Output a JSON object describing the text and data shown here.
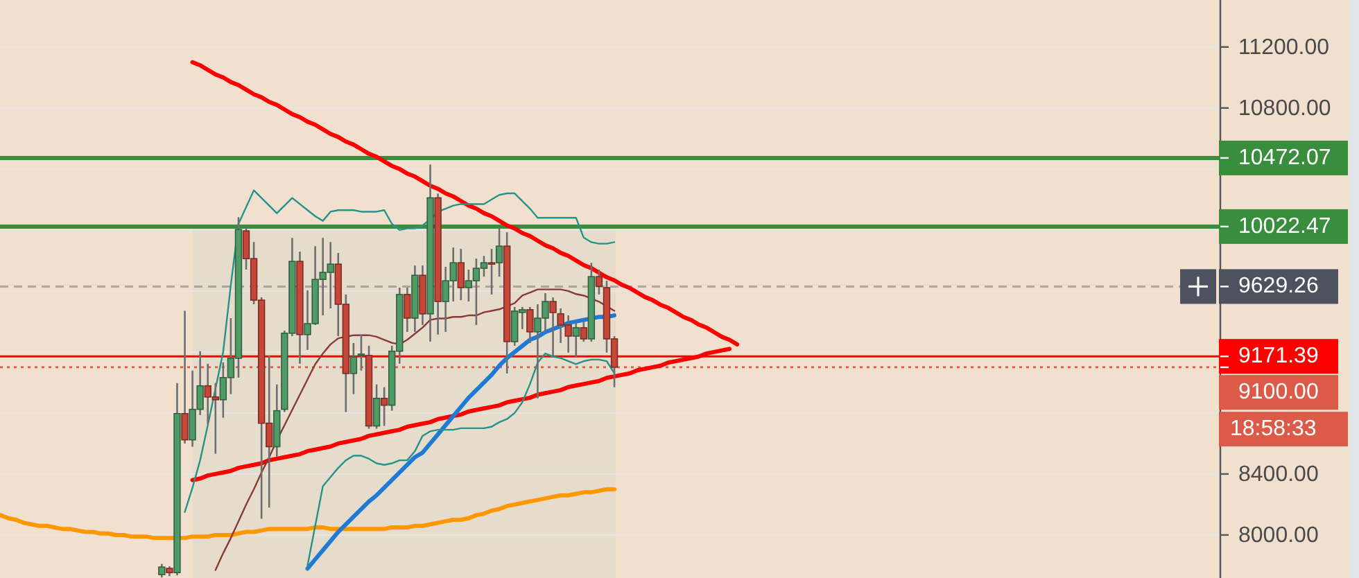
{
  "chart_data": {
    "type": "candlestick",
    "categories": [
      null,
      null,
      null,
      null,
      null,
      null,
      null,
      null,
      null,
      null,
      null,
      null,
      null,
      null,
      null,
      null,
      null,
      null,
      null,
      null,
      null,
      null,
      null,
      null,
      null,
      null,
      null,
      null,
      null,
      null,
      null,
      null,
      null,
      null,
      null,
      null,
      null,
      null,
      null,
      null,
      null,
      null,
      null,
      null,
      null,
      null,
      null,
      null,
      null,
      null,
      null,
      null,
      null,
      null,
      null,
      null,
      null,
      null,
      null,
      null,
      null,
      null,
      null,
      null,
      null,
      null,
      null,
      null,
      null,
      null,
      null,
      null,
      null,
      null,
      null,
      null,
      null,
      null,
      null,
      null,
      null,
      null,
      null,
      null,
      null,
      null,
      null,
      null,
      null,
      null,
      null,
      null,
      null,
      null,
      null,
      null,
      null
    ],
    "ohlc": [
      null,
      null,
      null,
      null,
      null,
      null,
      null,
      null,
      null,
      null,
      null,
      null,
      null,
      null,
      null,
      null,
      null,
      null,
      null,
      null,
      null,
      [
        7740,
        7810,
        7722,
        7790
      ],
      [
        7781,
        7795,
        7730,
        7753
      ],
      [
        7753,
        8996,
        7735,
        8796
      ],
      [
        8796,
        9470,
        8600,
        8624
      ],
      [
        8624,
        9078,
        8579,
        8824
      ],
      [
        8824,
        9205,
        8787,
        8978
      ],
      [
        8978,
        9123,
        8724,
        8905
      ],
      [
        8905,
        8996,
        8533,
        8887
      ],
      [
        8887,
        9132,
        8769,
        9032
      ],
      [
        9032,
        9422,
        8924,
        9159
      ],
      [
        9159,
        10084,
        9032,
        10003
      ],
      [
        9994,
        10030,
        9740,
        9812
      ],
      [
        9812,
        9921,
        9513,
        9540
      ],
      [
        9540,
        9558,
        8107,
        8733
      ],
      [
        8733,
        9177,
        8180,
        8579
      ],
      [
        8579,
        8987,
        8515,
        8815
      ],
      [
        8824,
        9340,
        8806,
        9323
      ],
      [
        9323,
        9948,
        9304,
        9794
      ],
      [
        9794,
        9858,
        9123,
        9314
      ],
      [
        9314,
        9604,
        9214,
        9386
      ],
      [
        9386,
        9894,
        9377,
        9676
      ],
      [
        9676,
        9948,
        9440,
        9722
      ],
      [
        9722,
        9921,
        9486,
        9776
      ],
      [
        9776,
        9849,
        9304,
        9513
      ],
      [
        9513,
        9577,
        8806,
        9059
      ],
      [
        9059,
        9259,
        8924,
        9168
      ],
      [
        9177,
        9314,
        9078,
        9186
      ],
      [
        9177,
        9241,
        8697,
        8715
      ],
      [
        8715,
        8987,
        8697,
        8896
      ],
      [
        8896,
        8969,
        8715,
        8851
      ],
      [
        8851,
        9241,
        8815,
        9205
      ],
      [
        9205,
        9622,
        9123,
        9577
      ],
      [
        9577,
        9622,
        9332,
        9422
      ],
      [
        9422,
        9767,
        9332,
        9703
      ],
      [
        9703,
        9767,
        9377,
        9450
      ],
      [
        9450,
        10429,
        9268,
        10211
      ],
      [
        10211,
        10239,
        9314,
        9531
      ],
      [
        9531,
        9758,
        9332,
        9667
      ],
      [
        9667,
        9885,
        9531,
        9785
      ],
      [
        9785,
        9876,
        9540,
        9622
      ],
      [
        9622,
        9740,
        9531,
        9667
      ],
      [
        9667,
        9812,
        9377,
        9749
      ],
      [
        9749,
        9830,
        9694,
        9785
      ],
      [
        9785,
        9876,
        9577,
        9780
      ],
      [
        9785,
        10012,
        9694,
        9894
      ],
      [
        9894,
        9985,
        9059,
        9268
      ],
      [
        9268,
        9495,
        9241,
        9468
      ],
      [
        9459,
        9495,
        9350,
        9477
      ],
      [
        9477,
        9495,
        9259,
        9332
      ],
      [
        9332,
        9513,
        8896,
        9422
      ],
      [
        9422,
        9586,
        9332,
        9531
      ],
      [
        9531,
        9558,
        9177,
        9459
      ],
      [
        9450,
        9486,
        9259,
        9377
      ],
      [
        9377,
        9440,
        9196,
        9304
      ],
      [
        9304,
        9395,
        9168,
        9359
      ],
      [
        9359,
        9404,
        9268,
        9286
      ],
      [
        9286,
        9785,
        9268,
        9694
      ],
      [
        9694,
        9740,
        9577,
        9631
      ],
      [
        9622,
        9667,
        9196,
        9286
      ],
      [
        9286,
        9304,
        8969,
        9100
      ],
      null,
      null,
      null,
      null,
      null,
      null,
      null,
      null,
      null,
      null,
      null,
      null,
      null,
      null,
      null,
      null
    ],
    "colors": [
      null,
      null,
      null,
      null,
      null,
      null,
      null,
      null,
      null,
      null,
      null,
      null,
      null,
      null,
      null,
      null,
      null,
      null,
      null,
      null,
      null,
      "#4f9a66",
      "#c4473a",
      "#4f9a66",
      "#c4473a",
      "#4f9a66",
      "#4f9a66",
      "#c4473a",
      "#c4473a",
      "#4f9a66",
      "#4f9a66",
      "#4f9a66",
      "#c4473a",
      "#c4473a",
      "#c4473a",
      "#c4473a",
      "#4f9a66",
      "#4f9a66",
      "#4f9a66",
      "#c4473a",
      "#4f9a66",
      "#4f9a66",
      "#4f9a66",
      "#4f9a66",
      "#c4473a",
      "#c4473a",
      "#4f9a66",
      "#4f9a66",
      "#c4473a",
      "#4f9a66",
      "#c4473a",
      "#4f9a66",
      "#4f9a66",
      "#c4473a",
      "#4f9a66",
      "#c4473a",
      "#4f9a66",
      "#c4473a",
      "#4f9a66",
      "#4f9a66",
      "#c4473a",
      "#4f9a66",
      "#4f9a66",
      "#4f9a66",
      "#c4473a",
      "#4f9a66",
      "#c4473a",
      "#4f9a66",
      "#4f9a66",
      "#c4473a",
      "#4f9a66",
      "#4f9a66",
      "#c4473a",
      "#c4473a",
      "#c4473a",
      "#4f9a66",
      "#c4473a",
      "#4f9a66",
      "#c4473a",
      "#c4473a",
      "#c4473a",
      null,
      null,
      null,
      null,
      null,
      null,
      null,
      null,
      null,
      null,
      null,
      null,
      null,
      null,
      null,
      null
    ],
    "series": [
      {
        "type": "line",
        "color": "#ff0000",
        "values": [
          null,
          null,
          null,
          null,
          null,
          null,
          null,
          null,
          null,
          null,
          null,
          null,
          null,
          null,
          null,
          null,
          null,
          null,
          null,
          null,
          null,
          null,
          null,
          null,
          null,
          11100,
          11080,
          11050,
          11020,
          11000,
          10970,
          10950,
          10920,
          10890,
          10870,
          10840,
          10820,
          10790,
          10760,
          10740,
          10710,
          10690,
          10660,
          10630,
          10610,
          10580,
          10560,
          10530,
          10500,
          10480,
          10450,
          10420,
          10400,
          10370,
          10350,
          10320,
          10290,
          10270,
          10240,
          10220,
          10190,
          10160,
          10140,
          10110,
          10090,
          10060,
          10030,
          10010,
          9980,
          9960,
          9930,
          9900,
          9880,
          9850,
          9830,
          9800,
          9770,
          9750,
          9720,
          9690,
          9670,
          9640,
          9620,
          9590,
          9560,
          9540,
          9510,
          9490,
          9460,
          9430,
          9410,
          9380,
          9360,
          9330,
          9300,
          9280,
          9250
        ]
      },
      {
        "type": "line",
        "color": "#ff0000",
        "values": [
          null,
          null,
          null,
          null,
          null,
          null,
          null,
          null,
          null,
          null,
          null,
          null,
          null,
          null,
          null,
          null,
          null,
          null,
          null,
          null,
          null,
          null,
          null,
          null,
          null,
          8360,
          8370,
          8390,
          8400,
          8410,
          8420,
          8440,
          8450,
          8460,
          8470,
          8490,
          8500,
          8510,
          8520,
          8530,
          8550,
          8560,
          8570,
          8580,
          8600,
          8610,
          8620,
          8630,
          8650,
          8660,
          8670,
          8680,
          8690,
          8710,
          8720,
          8730,
          8740,
          8760,
          8770,
          8780,
          8790,
          8810,
          8820,
          8830,
          8840,
          8850,
          8870,
          8880,
          8890,
          8900,
          8920,
          8930,
          8940,
          8950,
          8970,
          8980,
          8990,
          9000,
          9010,
          9030,
          9040,
          9050,
          9060,
          9080,
          9090,
          9100,
          9110,
          9130,
          9140,
          9150,
          9160,
          9170,
          9190,
          9200,
          9210,
          9220,
          null
        ]
      },
      {
        "type": "line",
        "color": "#ff9800",
        "values": [
          8130,
          8110,
          8100,
          8080,
          8070,
          8060,
          8060,
          8050,
          8040,
          8040,
          8030,
          8020,
          8020,
          8010,
          8010,
          8000,
          8000,
          7990,
          7990,
          7990,
          7980,
          7980,
          7980,
          7980,
          7980,
          7990,
          7990,
          7990,
          8000,
          8000,
          8000,
          8010,
          8020,
          8020,
          8030,
          8040,
          8040,
          8040,
          8040,
          8040,
          8040,
          8050,
          8050,
          8040,
          8040,
          8040,
          8040,
          8040,
          8040,
          8040,
          8040,
          8050,
          8050,
          8050,
          8060,
          8060,
          8070,
          8080,
          8090,
          8100,
          8100,
          8110,
          8130,
          8140,
          8160,
          8170,
          8190,
          8200,
          8210,
          8220,
          8230,
          8240,
          8250,
          8260,
          8260,
          8270,
          8280,
          8280,
          8290,
          8300,
          8300,
          null,
          null,
          null,
          null,
          null,
          null,
          null,
          null,
          null,
          null,
          null,
          null,
          null,
          null,
          null,
          null
        ]
      },
      {
        "type": "line",
        "color": "#1f7ad6",
        "values": [
          null,
          null,
          null,
          null,
          null,
          null,
          null,
          null,
          null,
          null,
          null,
          null,
          null,
          null,
          null,
          null,
          null,
          null,
          null,
          null,
          null,
          null,
          null,
          null,
          null,
          null,
          null,
          null,
          null,
          null,
          null,
          null,
          null,
          null,
          null,
          null,
          null,
          null,
          null,
          null,
          7780,
          7840,
          7900,
          7960,
          8020,
          8070,
          8120,
          8170,
          8220,
          8260,
          8310,
          8360,
          8410,
          8460,
          8510,
          8540,
          8600,
          8660,
          8720,
          8780,
          8840,
          8900,
          8950,
          9000,
          9050,
          9110,
          9160,
          9200,
          9240,
          9280,
          9300,
          9330,
          9350,
          9370,
          9390,
          9400,
          9410,
          9420,
          9430,
          9430,
          9440,
          null,
          null,
          null,
          null,
          null,
          null,
          null,
          null,
          null,
          null,
          null,
          null,
          null,
          null,
          null,
          null
        ]
      },
      {
        "type": "line",
        "color": "#8b3a36",
        "values": [
          null,
          null,
          null,
          null,
          null,
          null,
          null,
          null,
          null,
          null,
          null,
          null,
          null,
          null,
          null,
          null,
          null,
          null,
          null,
          null,
          null,
          null,
          null,
          null,
          null,
          null,
          null,
          null,
          7770,
          7880,
          7980,
          8090,
          8200,
          8300,
          8410,
          8510,
          8620,
          8720,
          8820,
          8920,
          9020,
          9120,
          9190,
          9250,
          9290,
          9300,
          9310,
          9310,
          9310,
          9300,
          9280,
          9260,
          9250,
          9280,
          9320,
          9360,
          9410,
          9420,
          9420,
          9430,
          9430,
          9440,
          9440,
          9460,
          9470,
          9480,
          9500,
          9520,
          9570,
          9590,
          9610,
          9610,
          9610,
          9610,
          9600,
          9580,
          9570,
          9550,
          9530,
          9500,
          9470,
          null,
          null,
          null,
          null,
          null,
          null,
          null,
          null,
          null,
          null,
          null,
          null,
          null,
          null,
          null,
          null
        ]
      },
      {
        "type": "line",
        "color": "#25938a",
        "values": [
          null,
          null,
          null,
          null,
          null,
          null,
          null,
          null,
          null,
          null,
          null,
          null,
          null,
          null,
          null,
          null,
          null,
          null,
          null,
          null,
          null,
          null,
          null,
          null,
          8150,
          8310,
          8490,
          8720,
          8960,
          9200,
          9640,
          10040,
          10150,
          10260,
          10210,
          10160,
          10110,
          10160,
          10210,
          10170,
          10130,
          10090,
          10060,
          10120,
          10130,
          10130,
          10130,
          10120,
          10120,
          10120,
          10130,
          10040,
          10000,
          10010,
          10010,
          10030,
          10070,
          10120,
          10140,
          10160,
          10170,
          10170,
          10170,
          10170,
          10200,
          10230,
          10240,
          10240,
          10190,
          10140,
          10080,
          10080,
          10080,
          10080,
          10080,
          10080,
          9950,
          9920,
          9910,
          9910,
          9920,
          null,
          null,
          null,
          null,
          null,
          null,
          null,
          null,
          null,
          null,
          null,
          null,
          null,
          null,
          null,
          null
        ]
      },
      {
        "type": "line",
        "color": "#25938a",
        "values": [
          null,
          null,
          null,
          null,
          null,
          null,
          null,
          null,
          null,
          null,
          null,
          null,
          null,
          null,
          null,
          null,
          null,
          null,
          null,
          null,
          null,
          null,
          null,
          null,
          null,
          null,
          null,
          null,
          null,
          null,
          null,
          null,
          null,
          null,
          null,
          null,
          null,
          null,
          null,
          null,
          7800,
          8060,
          8320,
          8380,
          8440,
          8490,
          8520,
          8520,
          8500,
          8470,
          8460,
          8470,
          8490,
          8490,
          8550,
          8650,
          8680,
          8690,
          8690,
          8690,
          8700,
          8700,
          8700,
          8700,
          8710,
          8740,
          8760,
          8800,
          8870,
          8990,
          9130,
          9190,
          9170,
          9160,
          9140,
          9120,
          9140,
          9150,
          9150,
          9140,
          9060,
          null,
          null,
          null,
          null,
          null,
          null,
          null,
          null,
          null,
          null,
          null,
          null,
          null,
          null,
          null,
          null
        ]
      }
    ],
    "ylim": [
      7718,
      11508
    ],
    "yticks": [
      {
        "value": 8000,
        "label": "8000.00"
      },
      {
        "value": 8400,
        "label": "8400.00"
      },
      {
        "value": 8800,
        "label": null
      },
      {
        "value": 9200,
        "label": null
      },
      {
        "value": 9600,
        "label": null
      },
      {
        "value": 10000,
        "label": null
      },
      {
        "value": 10400,
        "label": null
      },
      {
        "value": 10800,
        "label": "10800.00"
      },
      {
        "value": 11200,
        "label": "11200.00"
      }
    ],
    "grid": "y",
    "tick_labels": "y",
    "ref_lines": [
      {
        "axis": "y",
        "value": 10472.07,
        "label": "10472.07",
        "color": "#388e3c"
      },
      {
        "axis": "y",
        "value": 10022.47,
        "label": "10022.47",
        "color": "#388e3c"
      },
      {
        "axis": "y",
        "value": 9629.26,
        "label": "9629.26",
        "color": "#4c525e",
        "line_style": "dashed"
      },
      {
        "axis": "y",
        "value": 9171.39,
        "label": "9171.39",
        "color": "#ff0000"
      },
      {
        "axis": "y",
        "value": 9100,
        "label": "9100.00",
        "color": "#dc5a48",
        "line_style": "dotted"
      }
    ],
    "annotations": [
      "18:58:33"
    ]
  }
}
